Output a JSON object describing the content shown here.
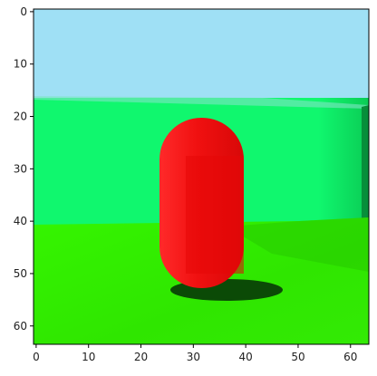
{
  "figure": {
    "image_grid": "64x64 pixel image",
    "x_ticks": [
      "0",
      "10",
      "20",
      "30",
      "40",
      "50",
      "60"
    ],
    "y_ticks": [
      "0",
      "10",
      "20",
      "30",
      "40",
      "50",
      "60"
    ],
    "scene": {
      "sky_color": "#9fe0f5",
      "wall_color": "#10f76e",
      "floor_color": "#35f500",
      "object_color": "#f01010",
      "object_highlight": "#ff3030",
      "shadow_color": "#0b4a06"
    }
  }
}
